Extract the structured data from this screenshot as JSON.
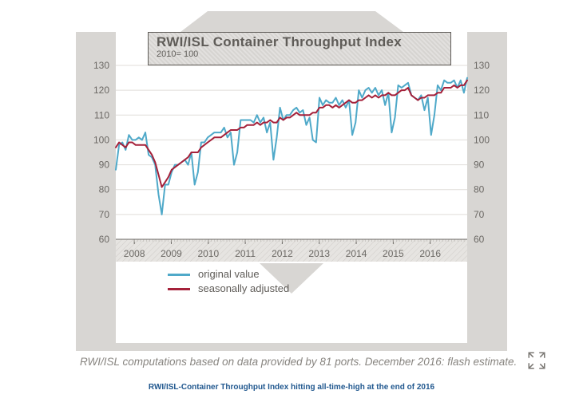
{
  "chart": {
    "type": "line",
    "title": "RWI/ISL Container Throughput Index",
    "subtitle": "2010= 100",
    "ylabel": "",
    "ylim": [
      60,
      130
    ],
    "ytick_step": 10,
    "x_years": [
      2008,
      2009,
      2010,
      2011,
      2012,
      2013,
      2014,
      2015,
      2016
    ],
    "x_start": 2007.5,
    "x_end": 2017.0,
    "background_color": "#ffffff",
    "grid_color": "#e0ddd9",
    "axis_text_color": "#6b6864",
    "decorative_color": "#d8d6d3",
    "axis_fontsize": 12,
    "title_fontsize": 17,
    "legend_fontsize": 13,
    "series": [
      {
        "name": "original value",
        "color": "#4fa9c9",
        "stroke_width": 2,
        "values": [
          88,
          98,
          99,
          96,
          102,
          100,
          100,
          101,
          100,
          103,
          94,
          93,
          90,
          78,
          70,
          82,
          82,
          87,
          90,
          90,
          91,
          92,
          90,
          95,
          82,
          87,
          99,
          99,
          101,
          102,
          103,
          103,
          103,
          105,
          101,
          103,
          90,
          95,
          108,
          108,
          108,
          108,
          107,
          110,
          107,
          109,
          103,
          107,
          92,
          101,
          113,
          108,
          110,
          110,
          112,
          113,
          111,
          112,
          106,
          109,
          100,
          99,
          117,
          114,
          116,
          115,
          115,
          117,
          114,
          116,
          113,
          116,
          102,
          107,
          120,
          117,
          120,
          121,
          119,
          121,
          118,
          120,
          114,
          119,
          103,
          109,
          122,
          121,
          122,
          123,
          118,
          117,
          116,
          118,
          112,
          117,
          102,
          110,
          122,
          120,
          124,
          123,
          123,
          124,
          121,
          124,
          119,
          125
        ]
      },
      {
        "name": "seasonally adjusted",
        "color": "#a5213a",
        "stroke_width": 2,
        "values": [
          97,
          99,
          98,
          97,
          99,
          99,
          98,
          98,
          98,
          98,
          96,
          94,
          91,
          86,
          81,
          83,
          85,
          88,
          89,
          90,
          91,
          92,
          93,
          95,
          95,
          95,
          97,
          98,
          99,
          100,
          101,
          101,
          101,
          102,
          103,
          104,
          104,
          104,
          105,
          105,
          106,
          106,
          106,
          107,
          106,
          107,
          107,
          108,
          107,
          107,
          109,
          108,
          109,
          109,
          110,
          111,
          110,
          110,
          110,
          110,
          111,
          111,
          113,
          113,
          114,
          114,
          113,
          114,
          113,
          114,
          115,
          116,
          115,
          115,
          116,
          116,
          117,
          118,
          117,
          118,
          117,
          118,
          118,
          119,
          118,
          118,
          119,
          120,
          120,
          121,
          118,
          117,
          116,
          117,
          117,
          118,
          118,
          118,
          119,
          119,
          121,
          121,
          121,
          122,
          121,
          122,
          122,
          124
        ]
      }
    ]
  },
  "legend": {
    "original": "original value",
    "seasonal": "seasonally adjusted"
  },
  "footnote": "RWI/ISL computations based on data provided by 81 ports. December 2016: flash estimate.",
  "caption": "RWI/ISL-Container Throughput Index hitting all-time-high at the end of 2016"
}
